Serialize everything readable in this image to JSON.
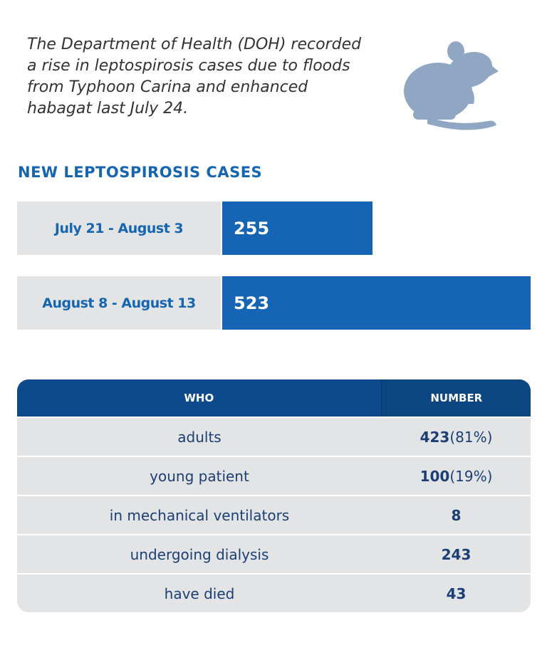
{
  "intro": "The Department of Health (DOH) recorded a rise in leptospirosis cases due to floods from Typhoon Carina and enhanced habagat last July 24.",
  "icon": "rat-icon",
  "colors": {
    "bar": "#1565b4",
    "header": "#0d4a8c",
    "heading": "#1565b0",
    "row": "#e2e4e6",
    "icon": "#8fa7c2"
  },
  "chart_data": {
    "type": "bar",
    "orientation": "horizontal",
    "title": "NEW LEPTOSPIROSIS CASES",
    "categories": [
      "July 21 - August 3",
      "August 8 - August 13"
    ],
    "values": [
      255,
      523
    ]
  },
  "table": {
    "headers": [
      "WHO",
      "NUMBER"
    ],
    "rows": [
      {
        "who": "adults",
        "number": "423",
        "pct": "(81%)"
      },
      {
        "who": "young patient",
        "number": "100",
        "pct": "(19%)"
      },
      {
        "who": "in mechanical ventilators",
        "number": "8",
        "pct": ""
      },
      {
        "who": "undergoing dialysis",
        "number": "243",
        "pct": ""
      },
      {
        "who": "have died",
        "number": "43",
        "pct": ""
      }
    ]
  }
}
